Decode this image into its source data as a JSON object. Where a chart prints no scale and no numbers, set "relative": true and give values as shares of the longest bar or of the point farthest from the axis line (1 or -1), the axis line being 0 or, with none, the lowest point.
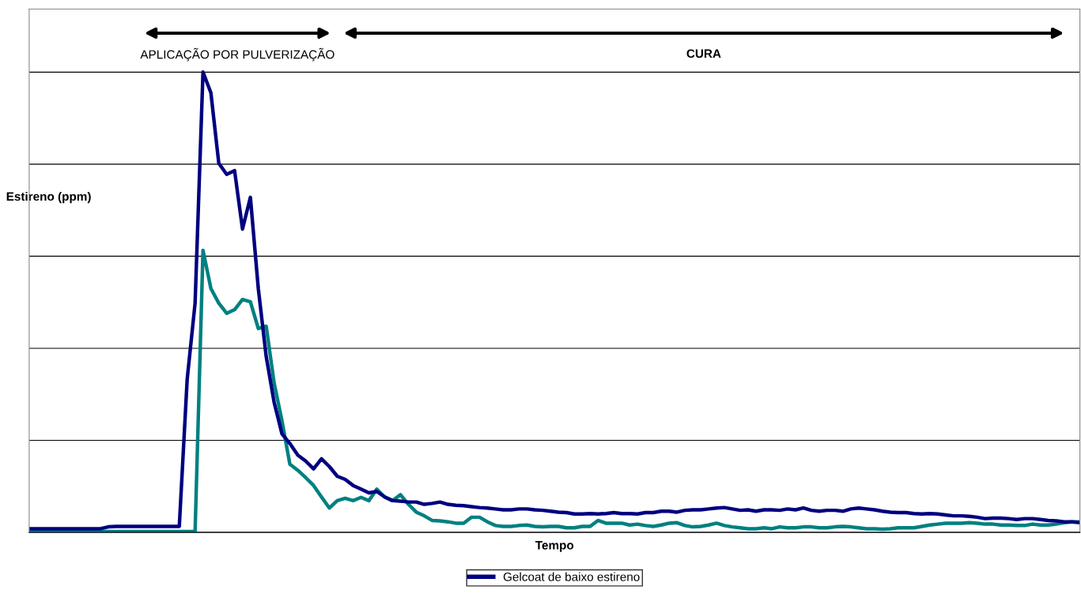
{
  "chart_data": {
    "type": "line",
    "relative": true,
    "xlabel": "Tempo",
    "ylabel": "Estireno (ppm)",
    "annotations": [
      "APLICAÇÃO POR PULVERIZAÇÃO",
      "CURA"
    ],
    "categories": [
      null,
      null,
      null,
      null,
      null,
      null,
      null,
      null,
      null,
      null,
      null,
      null,
      null,
      null,
      null,
      null,
      null,
      null,
      null,
      null,
      null,
      null,
      null,
      null,
      null,
      null,
      null,
      null,
      null,
      null,
      null,
      null,
      null,
      null,
      null,
      null,
      null,
      null,
      null,
      null,
      null,
      null,
      null,
      null,
      null,
      null,
      null,
      null,
      null,
      null,
      null,
      null,
      null,
      null,
      null,
      null,
      null,
      null,
      null,
      null,
      null,
      null,
      null,
      null,
      null,
      null,
      null,
      null,
      null,
      null,
      null,
      null,
      null,
      null,
      null,
      null,
      null,
      null,
      null,
      null,
      null,
      null,
      null,
      null,
      null,
      null,
      null,
      null,
      null,
      null,
      null,
      null,
      null,
      null,
      null,
      null,
      null,
      null,
      null,
      null,
      null,
      null,
      null,
      null,
      null,
      null,
      null,
      null,
      null,
      null,
      null,
      null,
      null,
      null,
      null,
      null,
      null,
      null,
      null,
      null,
      null,
      null,
      null,
      null,
      null,
      null,
      null,
      null,
      null,
      null,
      null,
      null,
      null,
      null
    ],
    "series": [
      {
        "color": "#008080",
        "values": [
          0.002,
          0.002,
          0.002,
          0.002,
          0.002,
          0.002,
          0.002,
          0.002,
          0.002,
          0.002,
          0.002,
          0.002,
          0.002,
          0.002,
          0.002,
          0.002,
          0.002,
          0.002,
          0.002,
          0.002,
          0.002,
          0.002,
          0.613,
          0.53,
          0.498,
          0.476,
          0.484,
          0.506,
          0.501,
          0.443,
          0.448,
          0.325,
          0.242,
          0.148,
          0.135,
          0.119,
          0.102,
          0.077,
          0.053,
          0.069,
          0.074,
          0.069,
          0.076,
          0.069,
          0.094,
          0.077,
          0.069,
          0.082,
          0.061,
          0.044,
          0.036,
          0.026,
          0.025,
          0.023,
          0.02,
          0.02,
          0.033,
          0.033,
          0.023,
          0.015,
          0.013,
          0.013,
          0.015,
          0.016,
          0.013,
          0.012,
          0.013,
          0.013,
          0.01,
          0.01,
          0.013,
          0.013,
          0.026,
          0.02,
          0.02,
          0.02,
          0.016,
          0.018,
          0.015,
          0.013,
          0.016,
          0.02,
          0.021,
          0.015,
          0.012,
          0.013,
          0.016,
          0.02,
          0.015,
          0.012,
          0.01,
          0.008,
          0.008,
          0.01,
          0.008,
          0.012,
          0.01,
          0.01,
          0.012,
          0.012,
          0.01,
          0.01,
          0.012,
          0.013,
          0.012,
          0.01,
          0.008,
          0.008,
          0.007,
          0.008,
          0.01,
          0.01,
          0.01,
          0.013,
          0.016,
          0.018,
          0.02,
          0.02,
          0.02,
          0.021,
          0.02,
          0.018,
          0.018,
          0.016,
          0.016,
          0.015,
          0.015,
          0.018,
          0.016,
          0.016,
          0.018,
          0.021,
          0.023,
          0.023
        ]
      },
      {
        "name": "Gelcoat de baixo estireno",
        "color": "#000080",
        "values": [
          0.008,
          0.008,
          0.008,
          0.008,
          0.008,
          0.008,
          0.008,
          0.008,
          0.008,
          0.008,
          0.012,
          0.013,
          0.013,
          0.013,
          0.013,
          0.013,
          0.013,
          0.013,
          0.013,
          0.013,
          0.333,
          0.498,
          1.0,
          0.955,
          0.802,
          0.778,
          0.786,
          0.659,
          0.728,
          0.53,
          0.382,
          0.283,
          0.214,
          0.193,
          0.168,
          0.155,
          0.138,
          0.16,
          0.143,
          0.122,
          0.115,
          0.102,
          0.094,
          0.086,
          0.089,
          0.077,
          0.069,
          0.068,
          0.066,
          0.066,
          0.061,
          0.063,
          0.066,
          0.061,
          0.059,
          0.058,
          0.056,
          0.054,
          0.053,
          0.051,
          0.049,
          0.049,
          0.051,
          0.051,
          0.049,
          0.048,
          0.046,
          0.044,
          0.043,
          0.04,
          0.04,
          0.041,
          0.04,
          0.041,
          0.043,
          0.041,
          0.041,
          0.04,
          0.043,
          0.043,
          0.046,
          0.046,
          0.044,
          0.048,
          0.049,
          0.049,
          0.051,
          0.053,
          0.054,
          0.051,
          0.048,
          0.049,
          0.046,
          0.049,
          0.049,
          0.048,
          0.051,
          0.049,
          0.053,
          0.048,
          0.046,
          0.048,
          0.048,
          0.046,
          0.051,
          0.053,
          0.051,
          0.049,
          0.046,
          0.044,
          0.043,
          0.043,
          0.041,
          0.04,
          0.041,
          0.04,
          0.038,
          0.036,
          0.036,
          0.035,
          0.033,
          0.03,
          0.031,
          0.031,
          0.03,
          0.028,
          0.03,
          0.03,
          0.028,
          0.026,
          0.025,
          0.023,
          0.023,
          0.021
        ]
      }
    ],
    "grid": "y",
    "legend": "bottom",
    "line_style": "solid",
    "marker": "none"
  }
}
